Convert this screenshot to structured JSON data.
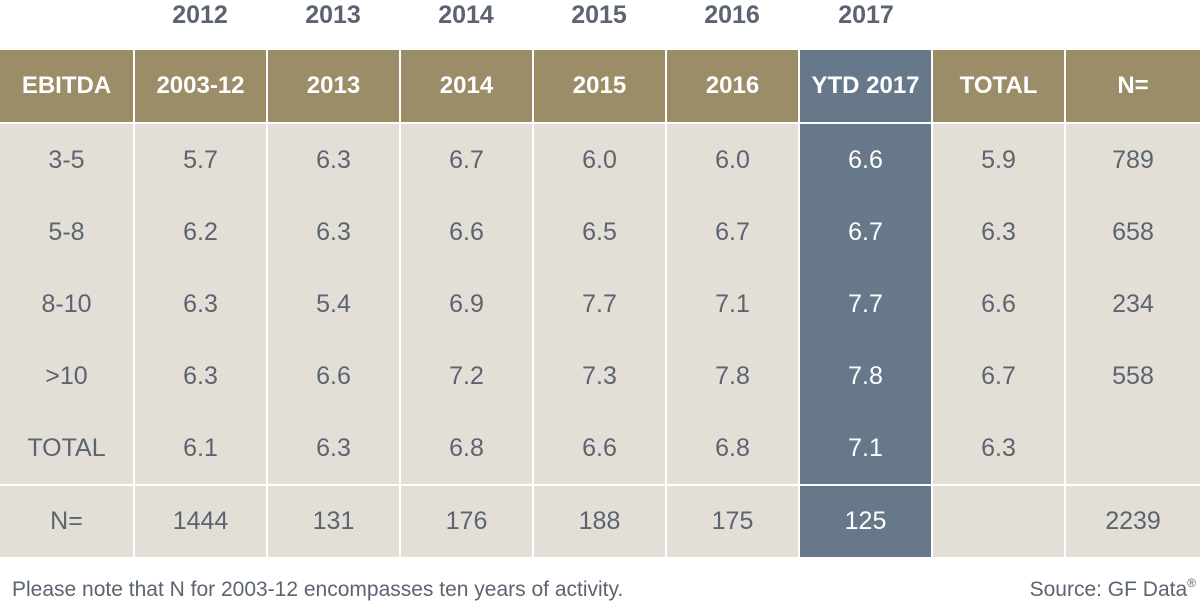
{
  "top_years": [
    "2012",
    "2013",
    "2014",
    "2015",
    "2016",
    "2017"
  ],
  "colors": {
    "header_bg": "#9b8d68",
    "highlight_bg": "#66788a",
    "cell_bg": "#e4dfd6",
    "text": "#5b6470",
    "header_text": "#ffffff"
  },
  "chart_data": {
    "type": "table",
    "columns": [
      "EBITDA",
      "2003-12",
      "2013",
      "2014",
      "2015",
      "2016",
      "YTD 2017",
      "TOTAL",
      "N="
    ],
    "highlighted_column": "YTD 2017",
    "rows": [
      [
        "3-5",
        "5.7",
        "6.3",
        "6.7",
        "6.0",
        "6.0",
        "6.6",
        "5.9",
        "789"
      ],
      [
        "5-8",
        "6.2",
        "6.3",
        "6.6",
        "6.5",
        "6.7",
        "6.7",
        "6.3",
        "658"
      ],
      [
        "8-10",
        "6.3",
        "5.4",
        "6.9",
        "7.7",
        "7.1",
        "7.7",
        "6.6",
        "234"
      ],
      [
        ">10",
        "6.3",
        "6.6",
        "7.2",
        "7.3",
        "7.8",
        "7.8",
        "6.7",
        "558"
      ],
      [
        "TOTAL",
        "6.1",
        "6.3",
        "6.8",
        "6.6",
        "6.8",
        "7.1",
        "6.3",
        ""
      ]
    ],
    "n_row": [
      "N=",
      "1444",
      "131",
      "176",
      "188",
      "175",
      "125",
      "",
      "2239"
    ]
  },
  "footnote": "Please note that N for 2003-12 encompasses ten years of activity.",
  "source": {
    "text": "Source: GF Data",
    "mark": "®"
  }
}
